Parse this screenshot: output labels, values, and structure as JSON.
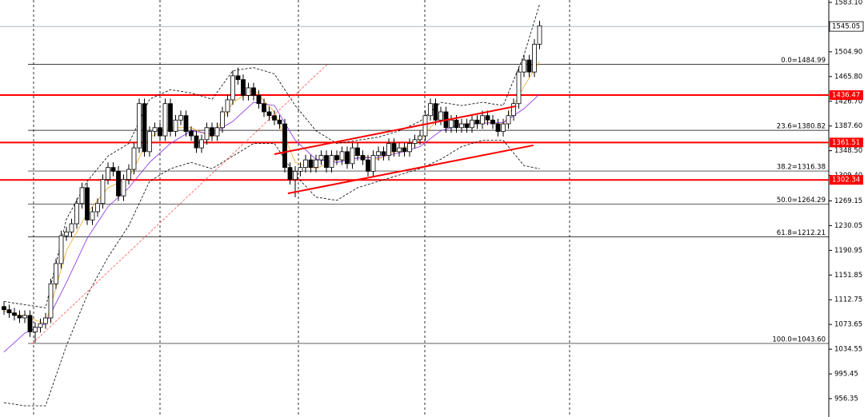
{
  "chart_data": {
    "type": "candlestick",
    "up_color": "#ffffff",
    "down_color": "#000000",
    "ylim": [
      927.3,
      1586.9
    ],
    "yticks": [
      {
        "value": 1583.1,
        "label": "1583.10"
      },
      {
        "value": 1504.9,
        "label": "1504.90"
      },
      {
        "value": 1465.8,
        "label": "1465.80"
      },
      {
        "value": 1426.7,
        "label": "1426.70"
      },
      {
        "value": 1387.6,
        "label": "1387.60"
      },
      {
        "value": 1348.5,
        "label": "1348.50"
      },
      {
        "value": 1309.4,
        "label": "1309.40"
      },
      1269.15,
      1230.05,
      1190.95,
      1151.85,
      1112.75,
      1073.65,
      1034.55,
      995.45,
      956.35
    ],
    "current_price": 1545.05,
    "levels": [
      {
        "value": 1436.47,
        "color": "#ff0000"
      },
      {
        "value": 1361.51,
        "color": "#ff0000"
      },
      {
        "value": 1302.34,
        "color": "#ff0000"
      }
    ],
    "fib_levels": [
      {
        "value": 1484.99,
        "label": "0.0=1484.99"
      },
      {
        "value": 1380.82,
        "label": "23.6=1380.82"
      },
      {
        "value": 1316.38,
        "label": "38.2=1316.38"
      },
      {
        "value": 1264.29,
        "label": "50.0=1264.29"
      },
      {
        "value": 1212.21,
        "label": "61.8=1212.21"
      },
      {
        "value": 1043.6,
        "label": "100.0=1043.60"
      }
    ],
    "ohlc": {
      "open": [
        1102,
        1097,
        1092,
        1088,
        1084,
        1088,
        1062,
        1069,
        1075,
        1084,
        1138,
        1170,
        1214,
        1220,
        1233,
        1265,
        1290,
        1239,
        1252,
        1265,
        1303,
        1322,
        1316,
        1277,
        1303,
        1319,
        1353,
        1423,
        1347,
        1379,
        1385,
        1372,
        1423,
        1379,
        1397,
        1404,
        1379,
        1372,
        1353,
        1366,
        1385,
        1372,
        1385,
        1410,
        1429,
        1467,
        1461,
        1436,
        1448,
        1436,
        1423,
        1410,
        1404,
        1397,
        1391,
        1322,
        1303,
        1316,
        1322,
        1334,
        1322,
        1334,
        1341,
        1322,
        1341,
        1334,
        1347,
        1328,
        1353,
        1341,
        1334,
        1316,
        1341,
        1347,
        1341,
        1360,
        1347,
        1353,
        1347,
        1360,
        1366,
        1372,
        1404,
        1423,
        1397,
        1410,
        1385,
        1397,
        1385,
        1391,
        1385,
        1397,
        1391,
        1404,
        1397,
        1391,
        1379,
        1391,
        1404,
        1423,
        1473,
        1492,
        1473,
        1517
      ],
      "high": [
        1110,
        1105,
        1100,
        1096,
        1096,
        1096,
        1077,
        1083,
        1092,
        1146,
        1178,
        1222,
        1228,
        1241,
        1273,
        1298,
        1298,
        1260,
        1273,
        1311,
        1330,
        1330,
        1324,
        1311,
        1327,
        1361,
        1431,
        1431,
        1387,
        1393,
        1393,
        1431,
        1431,
        1405,
        1412,
        1412,
        1387,
        1380,
        1374,
        1393,
        1393,
        1393,
        1418,
        1437,
        1475,
        1480,
        1469,
        1456,
        1456,
        1444,
        1431,
        1418,
        1412,
        1405,
        1399,
        1330,
        1324,
        1330,
        1342,
        1342,
        1342,
        1349,
        1349,
        1349,
        1349,
        1355,
        1355,
        1361,
        1361,
        1349,
        1342,
        1349,
        1355,
        1355,
        1368,
        1368,
        1361,
        1361,
        1368,
        1374,
        1380,
        1412,
        1431,
        1431,
        1418,
        1418,
        1405,
        1405,
        1399,
        1399,
        1405,
        1405,
        1412,
        1412,
        1405,
        1399,
        1399,
        1412,
        1431,
        1481,
        1500,
        1500,
        1525,
        1554
      ],
      "low": [
        1089,
        1084,
        1080,
        1076,
        1076,
        1054,
        1045,
        1061,
        1067,
        1076,
        1130,
        1162,
        1206,
        1212,
        1225,
        1257,
        1231,
        1231,
        1244,
        1257,
        1295,
        1308,
        1269,
        1269,
        1295,
        1311,
        1345,
        1339,
        1339,
        1371,
        1364,
        1364,
        1371,
        1371,
        1389,
        1371,
        1364,
        1345,
        1345,
        1358,
        1364,
        1364,
        1377,
        1402,
        1421,
        1453,
        1428,
        1428,
        1428,
        1415,
        1402,
        1396,
        1389,
        1383,
        1314,
        1295,
        1275,
        1308,
        1314,
        1314,
        1314,
        1326,
        1314,
        1314,
        1326,
        1326,
        1320,
        1320,
        1333,
        1326,
        1308,
        1308,
        1333,
        1333,
        1333,
        1339,
        1339,
        1339,
        1339,
        1352,
        1358,
        1364,
        1396,
        1389,
        1389,
        1377,
        1377,
        1377,
        1377,
        1377,
        1377,
        1383,
        1383,
        1389,
        1383,
        1371,
        1371,
        1383,
        1396,
        1415,
        1465,
        1465,
        1465,
        1509
      ],
      "close": [
        1097,
        1092,
        1088,
        1084,
        1088,
        1062,
        1069,
        1075,
        1084,
        1138,
        1170,
        1214,
        1220,
        1233,
        1265,
        1290,
        1239,
        1252,
        1265,
        1303,
        1322,
        1316,
        1277,
        1303,
        1319,
        1353,
        1423,
        1347,
        1379,
        1385,
        1372,
        1423,
        1379,
        1397,
        1404,
        1379,
        1372,
        1353,
        1366,
        1385,
        1372,
        1385,
        1410,
        1429,
        1467,
        1461,
        1436,
        1448,
        1436,
        1423,
        1410,
        1404,
        1397,
        1391,
        1322,
        1303,
        1316,
        1322,
        1334,
        1322,
        1334,
        1341,
        1322,
        1341,
        1334,
        1347,
        1328,
        1353,
        1341,
        1334,
        1316,
        1341,
        1347,
        1341,
        1360,
        1347,
        1353,
        1347,
        1360,
        1366,
        1372,
        1404,
        1423,
        1397,
        1410,
        1385,
        1397,
        1385,
        1391,
        1385,
        1397,
        1391,
        1404,
        1397,
        1391,
        1379,
        1391,
        1404,
        1423,
        1473,
        1492,
        1473,
        1517,
        1546
      ]
    },
    "indicators": {
      "x": [
        0,
        4,
        8,
        12,
        16,
        20,
        24,
        28,
        32,
        36,
        40,
        44,
        48,
        52,
        56,
        60,
        64,
        68,
        72,
        76,
        80,
        84,
        88,
        92,
        96,
        100,
        103
      ],
      "series": [
        {
          "color": "#f5a623",
          "dash": false,
          "values": [
            1095,
            1086,
            1075,
            1190,
            1250,
            1290,
            1305,
            1370,
            1385,
            1385,
            1370,
            1425,
            1445,
            1410,
            1330,
            1320,
            1335,
            1342,
            1335,
            1350,
            1365,
            1405,
            1390,
            1395,
            1390,
            1450,
            1490
          ]
        },
        {
          "color": "#8a2be2",
          "dash": false,
          "values": [
            1030,
            1060,
            1075,
            1140,
            1210,
            1260,
            1290,
            1330,
            1360,
            1380,
            1375,
            1395,
            1425,
            1420,
            1365,
            1335,
            1330,
            1337,
            1338,
            1345,
            1355,
            1380,
            1390,
            1392,
            1393,
            1415,
            1438
          ]
        },
        {
          "color": "#000000",
          "dash": true,
          "values": [
            1110,
            1105,
            1100,
            1240,
            1300,
            1340,
            1360,
            1430,
            1445,
            1440,
            1430,
            1475,
            1480,
            1470,
            1420,
            1380,
            1360,
            1365,
            1370,
            1380,
            1395,
            1425,
            1420,
            1425,
            1420,
            1500,
            1580
          ]
        },
        {
          "color": "#000000",
          "dash": true,
          "values": [
            950,
            945,
            945,
            1040,
            1120,
            1180,
            1230,
            1300,
            1320,
            1330,
            1320,
            1340,
            1360,
            1360,
            1310,
            1275,
            1270,
            1290,
            1300,
            1310,
            1320,
            1335,
            1355,
            1365,
            1365,
            1325,
            1320
          ]
        }
      ]
    },
    "trendlines": [
      {
        "x": [
          52,
          98.5
        ],
        "y": [
          1343,
          1419
        ],
        "color": "#ff0000",
        "dash": false
      },
      {
        "x": [
          54.6,
          101.8
        ],
        "y": [
          1281,
          1357
        ],
        "color": "#ff0000",
        "dash": false
      },
      {
        "x": [
          5.4,
          62.3
        ],
        "y": [
          1043,
          1486
        ],
        "color": "#ff5050",
        "dash": true
      }
    ]
  }
}
